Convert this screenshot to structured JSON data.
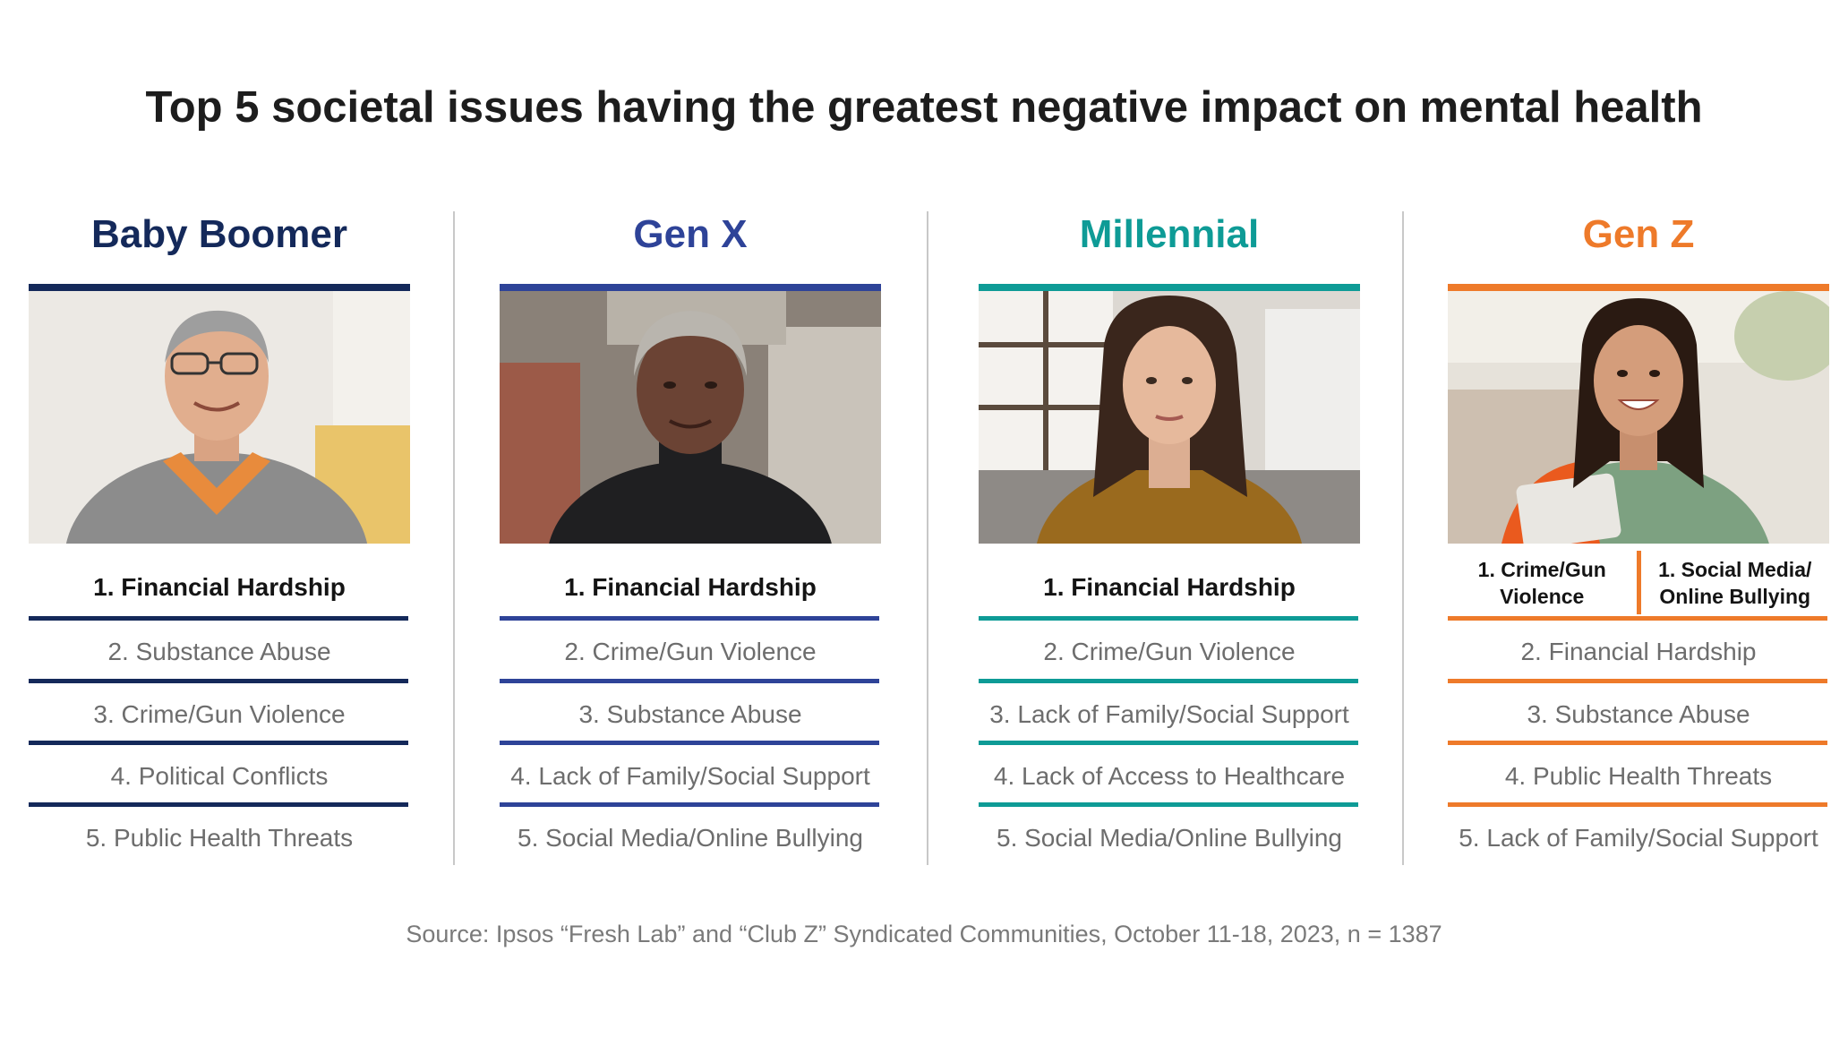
{
  "title": "Top 5 societal issues having the greatest negative impact on mental health",
  "columns": [
    {
      "name": "Baby Boomer",
      "color": "#14295a",
      "items": [
        "1. Financial Hardship",
        "2. Substance Abuse",
        "3. Crime/Gun Violence",
        "4. Political Conflicts",
        "5. Public Health Threats"
      ]
    },
    {
      "name": "Gen X",
      "color": "#2e4398",
      "items": [
        "1. Financial Hardship",
        "2. Crime/Gun Violence",
        "3. Substance Abuse",
        "4. Lack of Family/Social Support",
        "5. Social Media/Online Bullying"
      ]
    },
    {
      "name": "Millennial",
      "color": "#0e9b96",
      "items": [
        "1. Financial Hardship",
        "2. Crime/Gun Violence",
        "3. Lack of Family/Social Support",
        "4. Lack of Access to Healthcare",
        "5. Social Media/Online Bullying"
      ]
    },
    {
      "name": "Gen Z",
      "color": "#ee7a2a",
      "tied_first": [
        "1. Crime/Gun Violence",
        "1. Social Media/ Online Bullying"
      ],
      "items": [
        "",
        "2. Financial Hardship",
        "3. Substance Abuse",
        "4. Public Health Threats",
        "5. Lack of Family/Social Support"
      ]
    }
  ],
  "source": "Source: Ipsos “Fresh Lab” and “Club Z” Syndicated Communities, October 11-18, 2023, n = 1387"
}
